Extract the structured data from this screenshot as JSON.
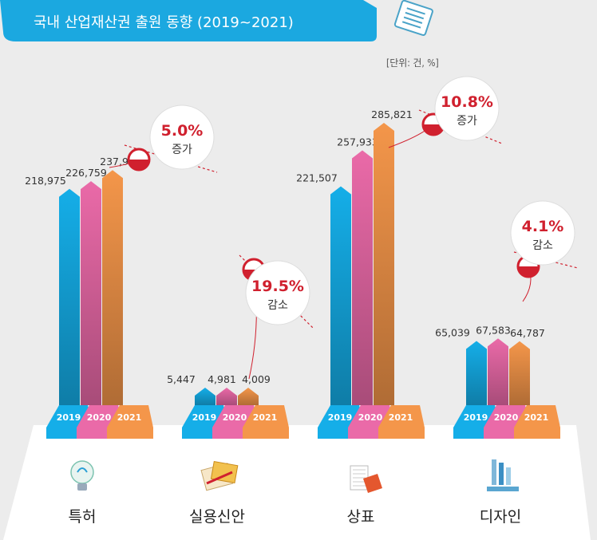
{
  "header": {
    "title": "국내 산업재산권 출원 동향 (2019~2021)",
    "unit": "[단위: 건, %]",
    "colors": {
      "bar": "#1ba8e0",
      "text": "#ffffff"
    }
  },
  "chart_data": {
    "type": "bar",
    "title": "국내 산업재산권 출원 동향 (2019~2021)",
    "unit": "[단위: 건, %]",
    "categories": [
      "특허",
      "실용신안",
      "상표",
      "디자인"
    ],
    "years": [
      "2019",
      "2020",
      "2021"
    ],
    "series": [
      {
        "name": "2019",
        "color": "#15aee8",
        "values": [
          218975,
          5447,
          221507,
          65039
        ],
        "labels": [
          "218,975",
          "5,447",
          "221,507",
          "65,039"
        ]
      },
      {
        "name": "2020",
        "color": "#ea6aa8",
        "values": [
          226759,
          4981,
          257933,
          67583
        ],
        "labels": [
          "226,759",
          "4,981",
          "257,933",
          "67,583"
        ]
      },
      {
        "name": "2021",
        "color": "#f4964a",
        "values": [
          237998,
          4009,
          285821,
          64787
        ],
        "labels": [
          "237,998",
          "4,009",
          "285,821",
          "64,787"
        ]
      }
    ],
    "changes": [
      {
        "category": "특허",
        "percent": "5.0%",
        "direction": "증가"
      },
      {
        "category": "실용신안",
        "percent": "19.5%",
        "direction": "감소"
      },
      {
        "category": "상표",
        "percent": "10.8%",
        "direction": "증가"
      },
      {
        "category": "디자인",
        "percent": "4.1%",
        "direction": "감소"
      }
    ],
    "icons": [
      "light-bulb-icon",
      "blueprint-icon",
      "price-tag-icon",
      "design-tools-icon"
    ]
  }
}
